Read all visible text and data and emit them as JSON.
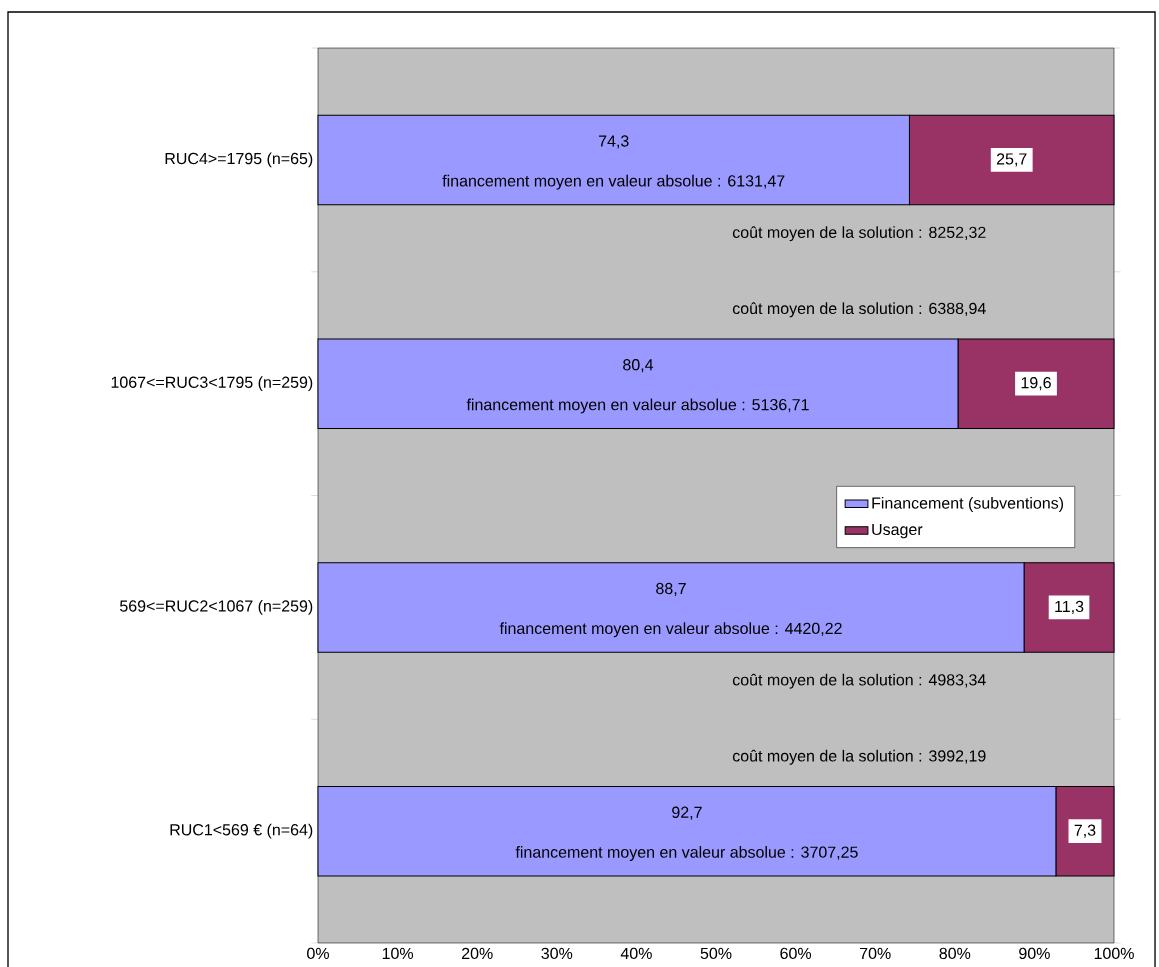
{
  "chart_data": {
    "type": "bar",
    "orientation": "horizontal",
    "stacked": true,
    "categories": [
      "RUC4>=1795 (n=65)",
      "1067<=RUC3<1795 (n=259)",
      "569<=RUC2<1067 (n=259)",
      "RUC1<569 € (n=64)"
    ],
    "series": [
      {
        "name": "Financement (subventions)",
        "color": "#9999ff",
        "values": [
          74.3,
          80.4,
          88.7,
          92.7
        ],
        "value_labels": [
          "74,3",
          "80,4",
          "88,7",
          "92,7"
        ]
      },
      {
        "name": "Usager",
        "color": "#993366",
        "values": [
          25.7,
          19.6,
          11.3,
          7.3
        ],
        "value_labels": [
          "25,7",
          "19,6",
          "11,3",
          "7,3"
        ]
      }
    ],
    "xlim": [
      0,
      100
    ],
    "xticks": [
      {
        "value": 0,
        "label": "0%"
      },
      {
        "value": 10,
        "label": "10%"
      },
      {
        "value": 20,
        "label": "20%"
      },
      {
        "value": 30,
        "label": "30%"
      },
      {
        "value": 40,
        "label": "40%"
      },
      {
        "value": 50,
        "label": "50%"
      },
      {
        "value": 60,
        "label": "60%"
      },
      {
        "value": 70,
        "label": "70%"
      },
      {
        "value": 80,
        "label": "80%"
      },
      {
        "value": 90,
        "label": "90%"
      },
      {
        "value": 100,
        "label": "100%"
      }
    ],
    "annotations": [
      "financement moyen en valeur absolue : 6131,47",
      "coût moyen de la solution : 8252,32",
      "financement moyen en valeur absolue : 5136,71",
      "coût moyen de la solution : 6388,94",
      "financement moyen en valeur absolue : 4420,22",
      "coût moyen de la solution : 4983,34",
      "financement moyen en valeur absolue : 3707,25",
      "coût moyen de la solution : 3992,19"
    ],
    "grid": false,
    "legend": "right"
  }
}
